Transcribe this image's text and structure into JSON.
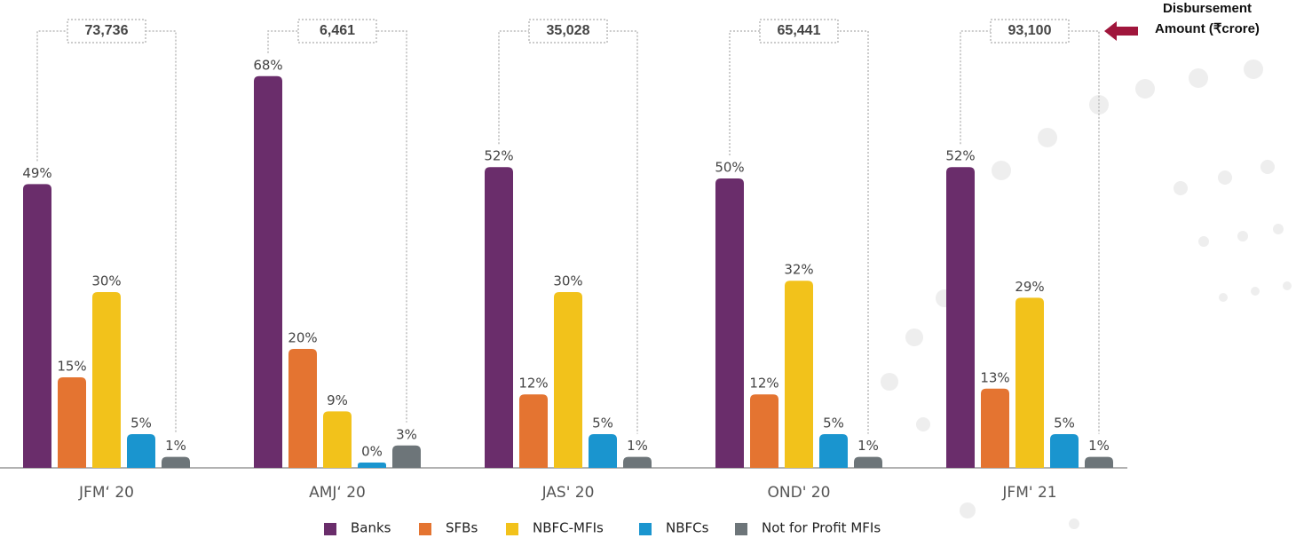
{
  "chart_data": {
    "type": "bar",
    "categories": [
      "JFM‘ 20",
      "AMJ‘ 20",
      "JAS' 20",
      "OND' 20",
      "JFM' 21"
    ],
    "series": [
      {
        "name": "Banks",
        "color": "#6a2d6b",
        "values": [
          49,
          68,
          52,
          50,
          52
        ],
        "value_labels": [
          "49%",
          "68%",
          "52%",
          "50%",
          "52%"
        ]
      },
      {
        "name": "SFBs",
        "color": "#e47431",
        "values": [
          15,
          20,
          12,
          12,
          13
        ],
        "value_labels": [
          "15%",
          "20%",
          "12%",
          "12%",
          "13%"
        ]
      },
      {
        "name": "NBFC-MFIs",
        "color": "#f2c21b",
        "values": [
          30,
          9,
          30,
          32,
          29
        ],
        "value_labels": [
          "30%",
          "9%",
          "30%",
          "32%",
          "29%"
        ]
      },
      {
        "name": "NBFCs",
        "color": "#1a95cf",
        "values": [
          5,
          0,
          5,
          5,
          5
        ],
        "value_labels": [
          "5%",
          "0%",
          "5%",
          "5%",
          "5%"
        ]
      },
      {
        "name": "Not for Profit MFIs",
        "color": "#6d7579",
        "values": [
          1,
          3,
          1,
          1,
          1
        ],
        "value_labels": [
          "1%",
          "3%",
          "1%",
          "1%",
          "1%"
        ]
      }
    ],
    "totals": {
      "label": [
        "Disbursement",
        "Amount (₹crore)"
      ],
      "color": "#a0163c",
      "values": [
        73736,
        6461,
        35028,
        65441,
        93100
      ],
      "value_labels": [
        "73,736",
        "6,461",
        "35,028",
        "65,441",
        "93,100"
      ]
    },
    "legend": "bottom"
  }
}
